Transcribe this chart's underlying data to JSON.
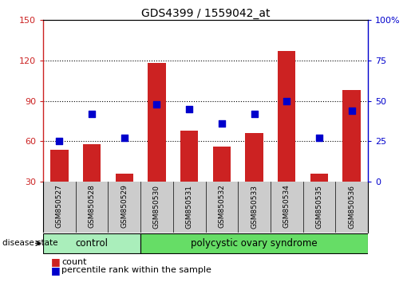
{
  "title": "GDS4399 / 1559042_at",
  "samples": [
    "GSM850527",
    "GSM850528",
    "GSM850529",
    "GSM850530",
    "GSM850531",
    "GSM850532",
    "GSM850533",
    "GSM850534",
    "GSM850535",
    "GSM850536"
  ],
  "counts": [
    54,
    58,
    36,
    118,
    68,
    56,
    66,
    127,
    36,
    98
  ],
  "percentiles": [
    25,
    42,
    27,
    48,
    45,
    36,
    42,
    50,
    27,
    44
  ],
  "ylim_left": [
    30,
    150
  ],
  "ylim_right": [
    0,
    100
  ],
  "yticks_left": [
    30,
    60,
    90,
    120,
    150
  ],
  "yticks_right": [
    0,
    25,
    50,
    75,
    100
  ],
  "bar_color": "#cc2222",
  "dot_color": "#0000cc",
  "bg_color": "#ffffff",
  "cell_bg": "#cccccc",
  "control_color": "#aaeebb",
  "pcos_color": "#66dd66",
  "control_label": "control",
  "pcos_label": "polycystic ovary syndrome",
  "disease_state_label": "disease state",
  "legend_count": "count",
  "legend_pct": "percentile rank within the sample",
  "n_control": 3,
  "n_pcos": 7,
  "bar_width": 0.55,
  "dot_size": 35
}
